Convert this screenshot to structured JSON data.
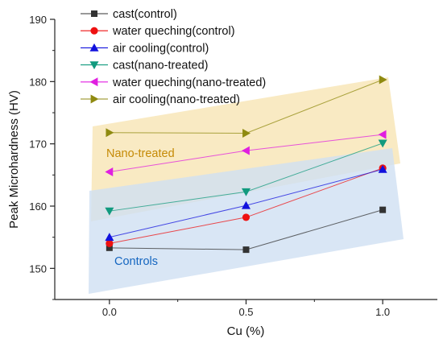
{
  "chart_data": {
    "type": "line",
    "title": "",
    "xlabel": "Cu (%)",
    "ylabel": "Peak Microhardness (HV)",
    "x": [
      0.0,
      0.5,
      1.0
    ],
    "x_ticks": [
      "0.0",
      "0.5",
      "1.0"
    ],
    "xlim": [
      -0.2,
      1.2
    ],
    "ylim": [
      145,
      190
    ],
    "y_ticks": [
      "150",
      "160",
      "170",
      "180",
      "190"
    ],
    "grid": false,
    "legend_position": "top-left",
    "series": [
      {
        "name": "cast(control)",
        "values": [
          153.3,
          153.0,
          159.4
        ],
        "color": "#333333",
        "marker": "square"
      },
      {
        "name": "water queching(control)",
        "values": [
          154.0,
          158.2,
          166.1
        ],
        "color": "#ee1111",
        "marker": "circle"
      },
      {
        "name": "air cooling(control)",
        "values": [
          155.0,
          160.1,
          165.9
        ],
        "color": "#1111dd",
        "marker": "triangle-up"
      },
      {
        "name": "cast(nano-treated)",
        "values": [
          159.2,
          162.3,
          170.1
        ],
        "color": "#119a7e",
        "marker": "triangle-down"
      },
      {
        "name": "water queching(nano-treated)",
        "values": [
          165.5,
          168.9,
          171.5
        ],
        "color": "#e01fe0",
        "marker": "triangle-left"
      },
      {
        "name": "air cooling(nano-treated)",
        "values": [
          171.8,
          171.7,
          180.3
        ],
        "color": "#8f8a10",
        "marker": "triangle-right"
      }
    ],
    "annotations": [
      {
        "text": "Nano-treated",
        "color": "#c58a06"
      },
      {
        "text": "Controls",
        "color": "#1566c0"
      }
    ]
  }
}
